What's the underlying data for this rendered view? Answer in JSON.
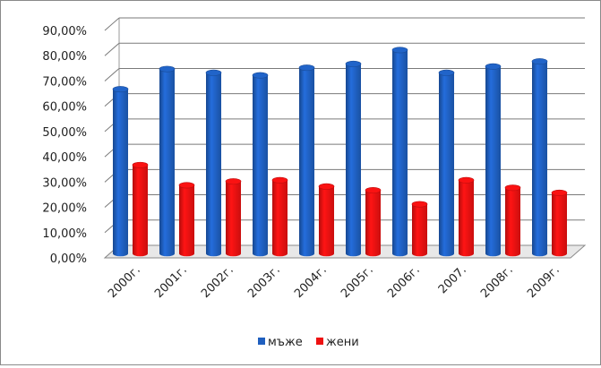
{
  "chart_data": {
    "type": "bar",
    "categories": [
      "2000г.",
      "2001г.",
      "2002г.",
      "2003г.",
      "2004г.",
      "2005г.",
      "2006г.",
      "2007.",
      "2008г.",
      "2009г."
    ],
    "series": [
      {
        "name": "мъже",
        "color": "#1f5fbf",
        "values": [
          65,
          73,
          71.5,
          70.5,
          73.5,
          75,
          80.5,
          71.5,
          74,
          76
        ]
      },
      {
        "name": "жени",
        "color": "#ee1111",
        "values": [
          35,
          27,
          28.5,
          29,
          26.5,
          25,
          19.5,
          29,
          26,
          24
        ]
      }
    ],
    "yticks": [
      "0,00%",
      "10,00%",
      "20,00%",
      "30,00%",
      "40,00%",
      "50,00%",
      "60,00%",
      "70,00%",
      "80,00%",
      "90,00%"
    ],
    "ylim": [
      0,
      90
    ],
    "title": "",
    "xlabel": "",
    "ylabel": "",
    "grid": true,
    "legend_position": "bottom"
  }
}
